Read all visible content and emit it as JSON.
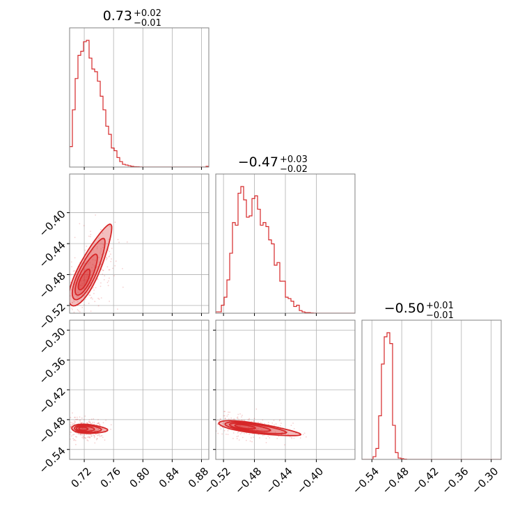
{
  "chart_data": {
    "type": "corner",
    "colors": {
      "series": "#d62728",
      "grid": "#b0b0b0",
      "frame": "#808080"
    },
    "grid": true,
    "parameters": [
      "p0",
      "p1",
      "p2"
    ],
    "ranges": {
      "p0": [
        0.7,
        0.89
      ],
      "p1": [
        -0.53,
        -0.35
      ],
      "p2": [
        -0.56,
        -0.28
      ]
    },
    "ticks": {
      "p0": [
        0.72,
        0.76,
        0.8,
        0.84,
        0.88
      ],
      "p1": [
        -0.52,
        -0.48,
        -0.44,
        -0.4
      ],
      "p2": [
        -0.54,
        -0.48,
        -0.42,
        -0.36,
        -0.3
      ]
    },
    "tick_labels": {
      "p0": [
        "0.72",
        "0.76",
        "0.80",
        "0.84",
        "0.88"
      ],
      "p1": [
        "−0.52",
        "−0.48",
        "−0.44",
        "−0.40"
      ],
      "p2": [
        "−0.54",
        "−0.48",
        "−0.42",
        "−0.36",
        "−0.30"
      ]
    },
    "titles": [
      {
        "value": "0.73",
        "upper": "+0.02",
        "lower": "−0.01"
      },
      {
        "value": "−0.47",
        "upper": "+0.03",
        "lower": "−0.02"
      },
      {
        "value": "−0.50",
        "upper": "+0.01",
        "lower": "−0.01"
      }
    ],
    "histograms": [
      {
        "param": "p0",
        "edges_start": 0.7,
        "bin_width": 0.0038,
        "counts": [
          0.15,
          0.42,
          0.65,
          0.82,
          0.85,
          0.92,
          0.93,
          0.8,
          0.72,
          0.7,
          0.63,
          0.52,
          0.42,
          0.3,
          0.24,
          0.14,
          0.12,
          0.07,
          0.04,
          0.02,
          0.015,
          0.01,
          0.005,
          0.003,
          0.002,
          0.001,
          0,
          0,
          0,
          0,
          0,
          0,
          0,
          0,
          0,
          0,
          0,
          0,
          0,
          0,
          0,
          0,
          0,
          0,
          0,
          0,
          0,
          0,
          0,
          0.005
        ]
      },
      {
        "param": "p1",
        "edges_start": -0.53,
        "bin_width": 0.0036,
        "counts": [
          0.01,
          0.01,
          0.06,
          0.12,
          0.25,
          0.45,
          0.68,
          0.66,
          0.9,
          0.95,
          0.85,
          0.72,
          0.73,
          0.86,
          0.88,
          0.78,
          0.66,
          0.68,
          0.65,
          0.55,
          0.52,
          0.36,
          0.38,
          0.24,
          0.24,
          0.12,
          0.11,
          0.09,
          0.05,
          0.06,
          0.02,
          0.01,
          0.005,
          0.005,
          0.002,
          0.001,
          0,
          0,
          0,
          0,
          0,
          0,
          0,
          0,
          0,
          0,
          0,
          0,
          0,
          0
        ]
      },
      {
        "param": "p2",
        "edges_start": -0.56,
        "bin_width": 0.0056,
        "counts": [
          0,
          0,
          0,
          0,
          0.02,
          0.08,
          0.32,
          0.7,
          0.9,
          0.93,
          0.85,
          0.25,
          0.05,
          0.01,
          0.005,
          0.002,
          0,
          0,
          0,
          0,
          0,
          0,
          0,
          0,
          0,
          0,
          0,
          0,
          0,
          0,
          0,
          0,
          0,
          0,
          0,
          0,
          0,
          0,
          0,
          0,
          0,
          0,
          0,
          0,
          0,
          0,
          0,
          0,
          0,
          0
        ]
      }
    ],
    "pairs": [
      {
        "x": "p0",
        "y": "p1",
        "mean": [
          0.727,
          -0.47
        ],
        "start": [
          0.703,
          -0.52
        ],
        "end": [
          0.756,
          -0.415
        ],
        "width": 0.012,
        "contour_levels": [
          1.0,
          0.75,
          0.5,
          0.25
        ]
      },
      {
        "x": "p0",
        "y": "p2",
        "mean": [
          0.727,
          -0.497
        ],
        "start": [
          0.703,
          -0.497
        ],
        "end": [
          0.752,
          -0.501
        ],
        "width": 0.006,
        "contour_levels": [
          1.0,
          0.75,
          0.5,
          0.25
        ]
      },
      {
        "x": "p1",
        "y": "p2",
        "mean": [
          -0.49,
          -0.494
        ],
        "start": [
          -0.526,
          -0.487
        ],
        "end": [
          -0.42,
          -0.51
        ],
        "width": 0.007,
        "contour_levels": [
          1.0,
          0.75,
          0.5,
          0.25
        ]
      }
    ]
  }
}
